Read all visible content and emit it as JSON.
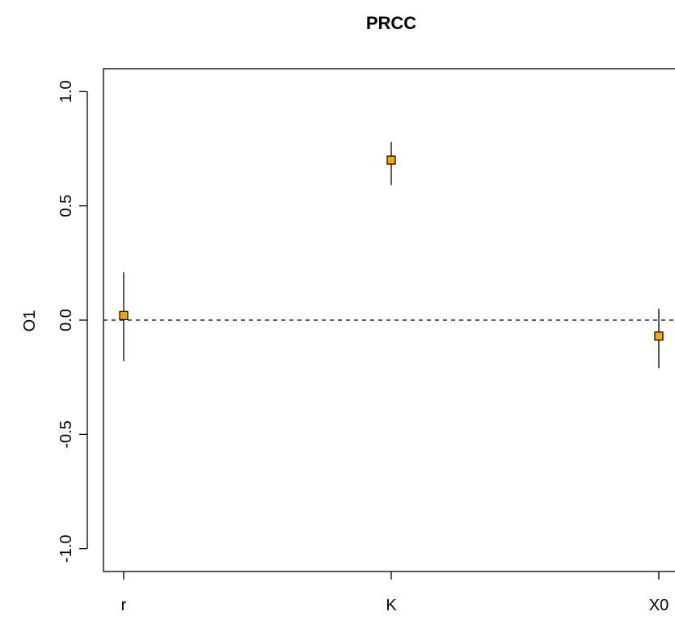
{
  "chart_data": {
    "type": "scatter",
    "title": "PRCC",
    "xlabel": "",
    "ylabel": "O1",
    "ylim": [
      -1.1,
      1.1
    ],
    "y_ticks": [
      "-1.0",
      "-0.5",
      "0.0",
      "0.5",
      "1.0"
    ],
    "y_tick_values": [
      -1.0,
      -0.5,
      0.0,
      0.5,
      1.0
    ],
    "categories": [
      "r",
      "K",
      "X0"
    ],
    "series": [
      {
        "values": [
          0.02,
          0.7,
          -0.07
        ],
        "lower": [
          -0.18,
          0.59,
          -0.21
        ],
        "upper": [
          0.21,
          0.78,
          0.05
        ]
      }
    ],
    "reference_line": 0,
    "marker_color": "#FFA500",
    "grid": false,
    "legend": "none"
  }
}
